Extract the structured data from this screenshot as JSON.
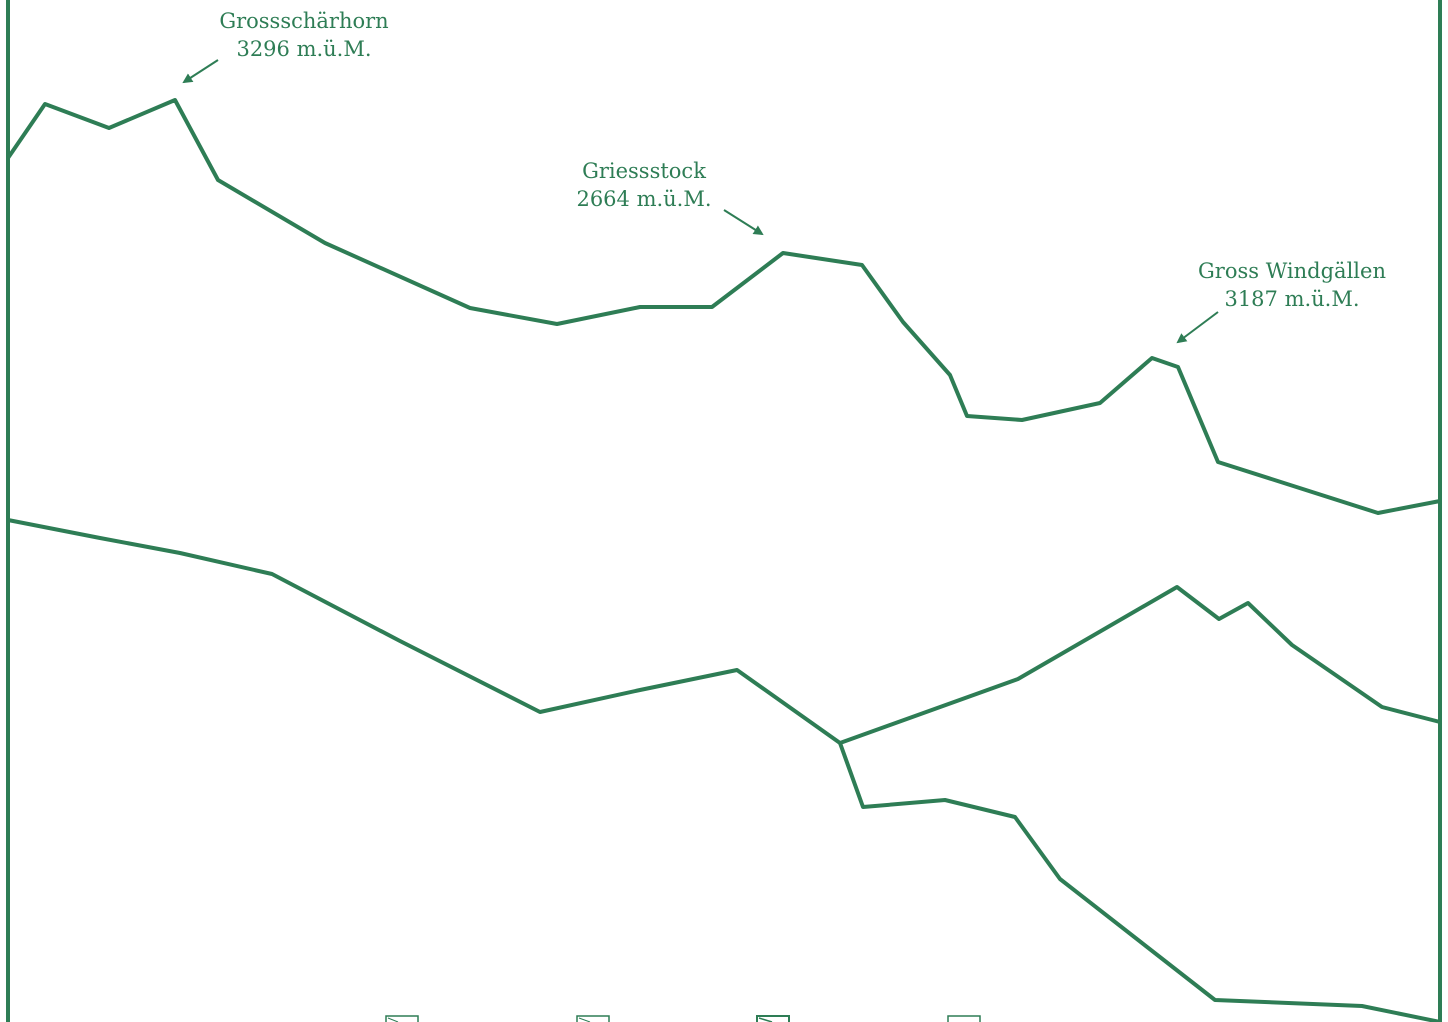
{
  "colors": {
    "line": "#2e7d55",
    "label": "#2e7d55",
    "background": "#ffffff"
  },
  "peaks": [
    {
      "name": "Grossschärhorn",
      "elevation": "3296 m.ü.M."
    },
    {
      "name": "Griessstock",
      "elevation": "2664 m.ü.M."
    },
    {
      "name": "Gross Windgällen",
      "elevation": "3187 m.ü.M."
    }
  ]
}
